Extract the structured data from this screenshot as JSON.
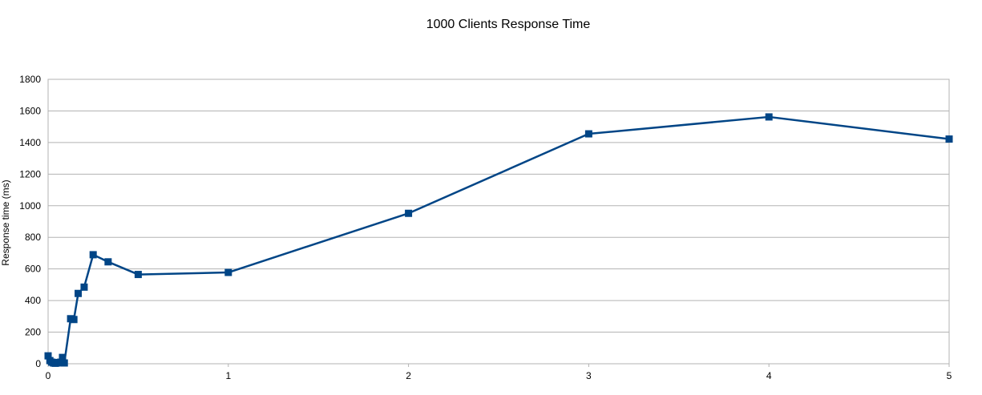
{
  "chart_data": {
    "type": "line",
    "title": "1000 Clients Response Time",
    "xlabel": "",
    "ylabel": "Response time (ms)",
    "xlim": [
      0,
      5
    ],
    "ylim": [
      0,
      1800
    ],
    "x_ticks": [
      0,
      1,
      2,
      3,
      4,
      5
    ],
    "y_ticks": [
      0,
      200,
      400,
      600,
      800,
      1000,
      1200,
      1400,
      1600,
      1800
    ],
    "grid": true,
    "legend": "none",
    "series": [
      {
        "color": "#004586",
        "marker": "square",
        "points": [
          {
            "x": 0.0,
            "y": 50
          },
          {
            "x": 0.01,
            "y": 20
          },
          {
            "x": 0.02,
            "y": 10
          },
          {
            "x": 0.03,
            "y": 5
          },
          {
            "x": 0.04,
            "y": 3
          },
          {
            "x": 0.05,
            "y": 5
          },
          {
            "x": 0.06,
            "y": 8
          },
          {
            "x": 0.07,
            "y": 10
          },
          {
            "x": 0.08,
            "y": 40
          },
          {
            "x": 0.09,
            "y": 5
          },
          {
            "x": 0.125,
            "y": 285
          },
          {
            "x": 0.143,
            "y": 280
          },
          {
            "x": 0.167,
            "y": 445
          },
          {
            "x": 0.2,
            "y": 485
          },
          {
            "x": 0.25,
            "y": 690
          },
          {
            "x": 0.333,
            "y": 645
          },
          {
            "x": 0.5,
            "y": 565
          },
          {
            "x": 1.0,
            "y": 578
          },
          {
            "x": 2.0,
            "y": 952
          },
          {
            "x": 3.0,
            "y": 1455
          },
          {
            "x": 4.0,
            "y": 1562
          },
          {
            "x": 5.0,
            "y": 1422
          }
        ]
      }
    ]
  }
}
